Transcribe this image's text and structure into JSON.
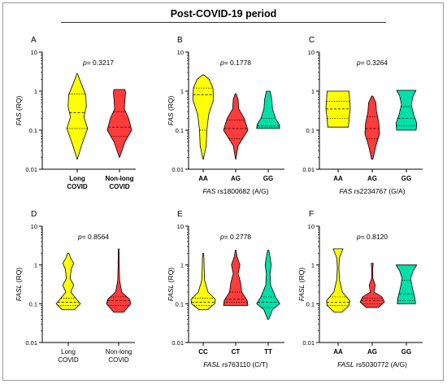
{
  "figure_title": "Post-COVID-19 period",
  "chart_data": [
    {
      "panel": "A",
      "type": "violin",
      "ylabel": "FAS (RQ)",
      "ylabel_italic_part": "FAS",
      "ylabel_rest": " (RQ)",
      "yscale": "log",
      "ylim": [
        0.01,
        10
      ],
      "yticks": [
        "0.01",
        "0.1",
        "1",
        "10"
      ],
      "p_prefix": "p",
      "p_value": "= 0.3217",
      "xlabel": "",
      "xlabel_italic": "",
      "xlabel_rest": "",
      "categories": [
        "Long\nCOVID",
        "Non-long\nCOVID"
      ],
      "category_bold": true,
      "series": [
        {
          "color": "#ffff00",
          "min": 0.018,
          "max": 2.8,
          "median": 0.28,
          "q1": 0.11,
          "q3": 0.85,
          "profile": [
            [
              0.018,
              0.01
            ],
            [
              0.04,
              0.35
            ],
            [
              0.11,
              0.85
            ],
            [
              0.22,
              0.55
            ],
            [
              0.4,
              0.75
            ],
            [
              0.8,
              0.7
            ],
            [
              1.5,
              0.35
            ],
            [
              2.8,
              0.02
            ]
          ]
        },
        {
          "color": "#ff3b3b",
          "min": 0.02,
          "max": 1.1,
          "median": 0.12,
          "q1": 0.07,
          "q3": 0.3,
          "profile": [
            [
              0.02,
              0.01
            ],
            [
              0.05,
              0.45
            ],
            [
              0.1,
              1.0
            ],
            [
              0.2,
              0.75
            ],
            [
              0.35,
              0.4
            ],
            [
              0.6,
              0.45
            ],
            [
              0.9,
              0.5
            ],
            [
              1.1,
              0.45
            ]
          ]
        }
      ]
    },
    {
      "panel": "B",
      "type": "violin",
      "ylabel": "FAS (RQ)",
      "ylabel_italic_part": "FAS",
      "ylabel_rest": " (RQ)",
      "yscale": "log",
      "ylim": [
        0.01,
        10
      ],
      "yticks": [
        "0.01",
        "0.1",
        "1",
        "10"
      ],
      "p_prefix": "p",
      "p_value": "= 0.1778",
      "xlabel": "FAS rs1800682 (A/G)",
      "xlabel_italic": "FAS",
      "xlabel_rest": " rs1800682 (A/G)",
      "categories": [
        "AA",
        "AG",
        "GG"
      ],
      "category_bold": true,
      "series": [
        {
          "color": "#ffff00",
          "min": 0.018,
          "max": 2.6,
          "median": 0.8,
          "q1": 0.1,
          "q3": 1.2,
          "profile": [
            [
              0.018,
              0.01
            ],
            [
              0.04,
              0.25
            ],
            [
              0.1,
              0.3
            ],
            [
              0.25,
              0.45
            ],
            [
              0.6,
              0.85
            ],
            [
              1.2,
              0.8
            ],
            [
              2.0,
              0.5
            ],
            [
              2.6,
              0.05
            ]
          ]
        },
        {
          "color": "#ff3b3b",
          "min": 0.018,
          "max": 0.85,
          "median": 0.11,
          "q1": 0.06,
          "q3": 0.18,
          "profile": [
            [
              0.018,
              0.01
            ],
            [
              0.04,
              0.2
            ],
            [
              0.1,
              1.0
            ],
            [
              0.2,
              0.7
            ],
            [
              0.35,
              0.25
            ],
            [
              0.6,
              0.2
            ],
            [
              0.85,
              0.05
            ]
          ]
        },
        {
          "color": "#00e0a8",
          "min": 0.11,
          "max": 1.0,
          "median": 0.13,
          "q1": 0.12,
          "q3": 0.2,
          "profile": [
            [
              0.11,
              0.95
            ],
            [
              0.14,
              0.9
            ],
            [
              0.2,
              0.6
            ],
            [
              0.35,
              0.35
            ],
            [
              0.6,
              0.3
            ],
            [
              1.0,
              0.15
            ]
          ]
        }
      ]
    },
    {
      "panel": "C",
      "type": "violin",
      "ylabel": "",
      "ylabel_italic_part": "",
      "ylabel_rest": "",
      "yscale": "log",
      "ylim": [
        0.01,
        10
      ],
      "yticks": [
        "0.01",
        "0.1",
        "1",
        "10"
      ],
      "p_prefix": "p",
      "p_value": "= 0.3264",
      "xlabel": "FAS rs2234767 (G/A)",
      "xlabel_italic": "FAS",
      "xlabel_rest": " rs2234767 (G/A)",
      "categories": [
        "AA",
        "AG",
        "GG"
      ],
      "category_bold": true,
      "series": [
        {
          "color": "#ffff00",
          "min": 0.12,
          "max": 1.0,
          "median": 0.35,
          "q1": 0.2,
          "q3": 0.55,
          "profile": [
            [
              0.12,
              0.85
            ],
            [
              0.2,
              0.9
            ],
            [
              0.35,
              1.0
            ],
            [
              0.6,
              0.95
            ],
            [
              1.0,
              0.9
            ]
          ]
        },
        {
          "color": "#ff3b3b",
          "min": 0.018,
          "max": 0.75,
          "median": 0.11,
          "q1": 0.06,
          "q3": 0.22,
          "profile": [
            [
              0.018,
              0.05
            ],
            [
              0.04,
              0.3
            ],
            [
              0.08,
              0.6
            ],
            [
              0.15,
              0.55
            ],
            [
              0.3,
              0.35
            ],
            [
              0.5,
              0.3
            ],
            [
              0.75,
              0.05
            ]
          ]
        },
        {
          "color": "#00e0a8",
          "min": 0.1,
          "max": 1.05,
          "median": 0.2,
          "q1": 0.13,
          "q3": 0.4,
          "profile": [
            [
              0.1,
              0.8
            ],
            [
              0.15,
              0.85
            ],
            [
              0.25,
              0.6
            ],
            [
              0.45,
              0.4
            ],
            [
              0.75,
              0.55
            ],
            [
              1.05,
              0.8
            ]
          ]
        }
      ]
    },
    {
      "panel": "D",
      "type": "violin",
      "ylabel": "FASL (RQ)",
      "ylabel_italic_part": "FASL",
      "ylabel_rest": " (RQ)",
      "yscale": "log",
      "ylim": [
        0.01,
        10
      ],
      "yticks": [
        "0.01",
        "0.1",
        "1",
        "10"
      ],
      "p_prefix": "p",
      "p_value": "= 0.8564",
      "xlabel": "",
      "xlabel_italic": "",
      "xlabel_rest": "",
      "categories": [
        "Long\nCOVID",
        "Non-long\nCOVID"
      ],
      "category_bold": false,
      "series": [
        {
          "color": "#ffff00",
          "min": 0.07,
          "max": 2.0,
          "median": 0.11,
          "q1": 0.09,
          "q3": 0.14,
          "profile": [
            [
              0.07,
              0.5
            ],
            [
              0.1,
              1.0
            ],
            [
              0.14,
              0.6
            ],
            [
              0.2,
              0.2
            ],
            [
              0.3,
              0.45
            ],
            [
              0.45,
              0.15
            ],
            [
              0.8,
              0.25
            ],
            [
              1.1,
              0.45
            ],
            [
              1.5,
              0.2
            ],
            [
              2.0,
              0.05
            ]
          ]
        },
        {
          "color": "#ff3b3b",
          "min": 0.06,
          "max": 2.6,
          "median": 0.12,
          "q1": 0.09,
          "q3": 0.15,
          "profile": [
            [
              0.06,
              0.4
            ],
            [
              0.1,
              1.0
            ],
            [
              0.13,
              0.9
            ],
            [
              0.2,
              0.25
            ],
            [
              0.4,
              0.08
            ],
            [
              0.8,
              0.05
            ],
            [
              1.5,
              0.04
            ],
            [
              2.6,
              0.03
            ]
          ]
        }
      ]
    },
    {
      "panel": "E",
      "type": "violin",
      "ylabel": "FASL (RQ)",
      "ylabel_italic_part": "FASL",
      "ylabel_rest": " (RQ)",
      "yscale": "log",
      "ylim": [
        0.01,
        10
      ],
      "yticks": [
        "0.01",
        "0.1",
        "1",
        "10"
      ],
      "p_prefix": "p",
      "p_value": "= 0.2778",
      "xlabel": "FASL rs763110 (C/T)",
      "xlabel_italic": "FASL",
      "xlabel_rest": " rs763110 (C/T)",
      "categories": [
        "CC",
        "CT",
        "TT"
      ],
      "category_bold": true,
      "series": [
        {
          "color": "#ffff00",
          "min": 0.07,
          "max": 2.0,
          "median": 0.11,
          "q1": 0.09,
          "q3": 0.14,
          "profile": [
            [
              0.07,
              0.35
            ],
            [
              0.1,
              0.95
            ],
            [
              0.13,
              1.0
            ],
            [
              0.2,
              0.4
            ],
            [
              0.4,
              0.12
            ],
            [
              0.8,
              0.08
            ],
            [
              1.5,
              0.06
            ],
            [
              2.0,
              0.03
            ]
          ]
        },
        {
          "color": "#ff3b3b",
          "min": 0.09,
          "max": 2.4,
          "median": 0.13,
          "q1": 0.11,
          "q3": 0.2,
          "profile": [
            [
              0.09,
              1.0
            ],
            [
              0.12,
              0.95
            ],
            [
              0.2,
              0.5
            ],
            [
              0.35,
              0.4
            ],
            [
              0.6,
              0.2
            ],
            [
              1.0,
              0.35
            ],
            [
              1.6,
              0.12
            ],
            [
              2.4,
              0.03
            ]
          ]
        },
        {
          "color": "#00e0a8",
          "min": 0.04,
          "max": 2.4,
          "median": 0.11,
          "q1": 0.08,
          "q3": 0.15,
          "profile": [
            [
              0.04,
              0.05
            ],
            [
              0.07,
              0.35
            ],
            [
              0.1,
              0.95
            ],
            [
              0.15,
              0.6
            ],
            [
              0.3,
              0.2
            ],
            [
              0.6,
              0.15
            ],
            [
              1.0,
              0.25
            ],
            [
              1.6,
              0.15
            ],
            [
              2.4,
              0.05
            ]
          ]
        }
      ]
    },
    {
      "panel": "F",
      "type": "violin",
      "ylabel": "FASL (RQ)",
      "ylabel_italic_part": "FASL",
      "ylabel_rest": " (RQ)",
      "yscale": "log",
      "ylim": [
        0.01,
        10
      ],
      "yticks": [
        "0.01",
        "0.1",
        "1",
        "10"
      ],
      "p_prefix": "p",
      "p_value": "= 0.8120",
      "xlabel": "FASL rs5030772 (A/G)",
      "xlabel_italic": "FASL",
      "xlabel_rest": " rs5030772 (A/G)",
      "categories": [
        "AA",
        "AG",
        "GG"
      ],
      "category_bold": true,
      "series": [
        {
          "color": "#ffff00",
          "min": 0.06,
          "max": 2.6,
          "median": 0.11,
          "q1": 0.09,
          "q3": 0.15,
          "profile": [
            [
              0.06,
              0.3
            ],
            [
              0.09,
              0.9
            ],
            [
              0.12,
              0.95
            ],
            [
              0.2,
              0.35
            ],
            [
              0.4,
              0.12
            ],
            [
              0.8,
              0.06
            ],
            [
              1.5,
              0.1
            ],
            [
              2.6,
              0.4
            ]
          ]
        },
        {
          "color": "#ff3b3b",
          "min": 0.08,
          "max": 1.1,
          "median": 0.12,
          "q1": 0.1,
          "q3": 0.14,
          "profile": [
            [
              0.08,
              0.5
            ],
            [
              0.11,
              1.0
            ],
            [
              0.15,
              0.8
            ],
            [
              0.2,
              0.15
            ],
            [
              0.3,
              0.25
            ],
            [
              0.45,
              0.05
            ],
            [
              0.8,
              0.04
            ],
            [
              1.1,
              0.08
            ]
          ]
        },
        {
          "color": "#00e0a8",
          "min": 0.1,
          "max": 1.0,
          "median": 0.18,
          "q1": 0.12,
          "q3": 0.4,
          "profile": [
            [
              0.1,
              0.75
            ],
            [
              0.14,
              0.7
            ],
            [
              0.25,
              0.5
            ],
            [
              0.45,
              0.35
            ],
            [
              0.7,
              0.55
            ],
            [
              1.0,
              0.85
            ]
          ]
        }
      ]
    }
  ]
}
